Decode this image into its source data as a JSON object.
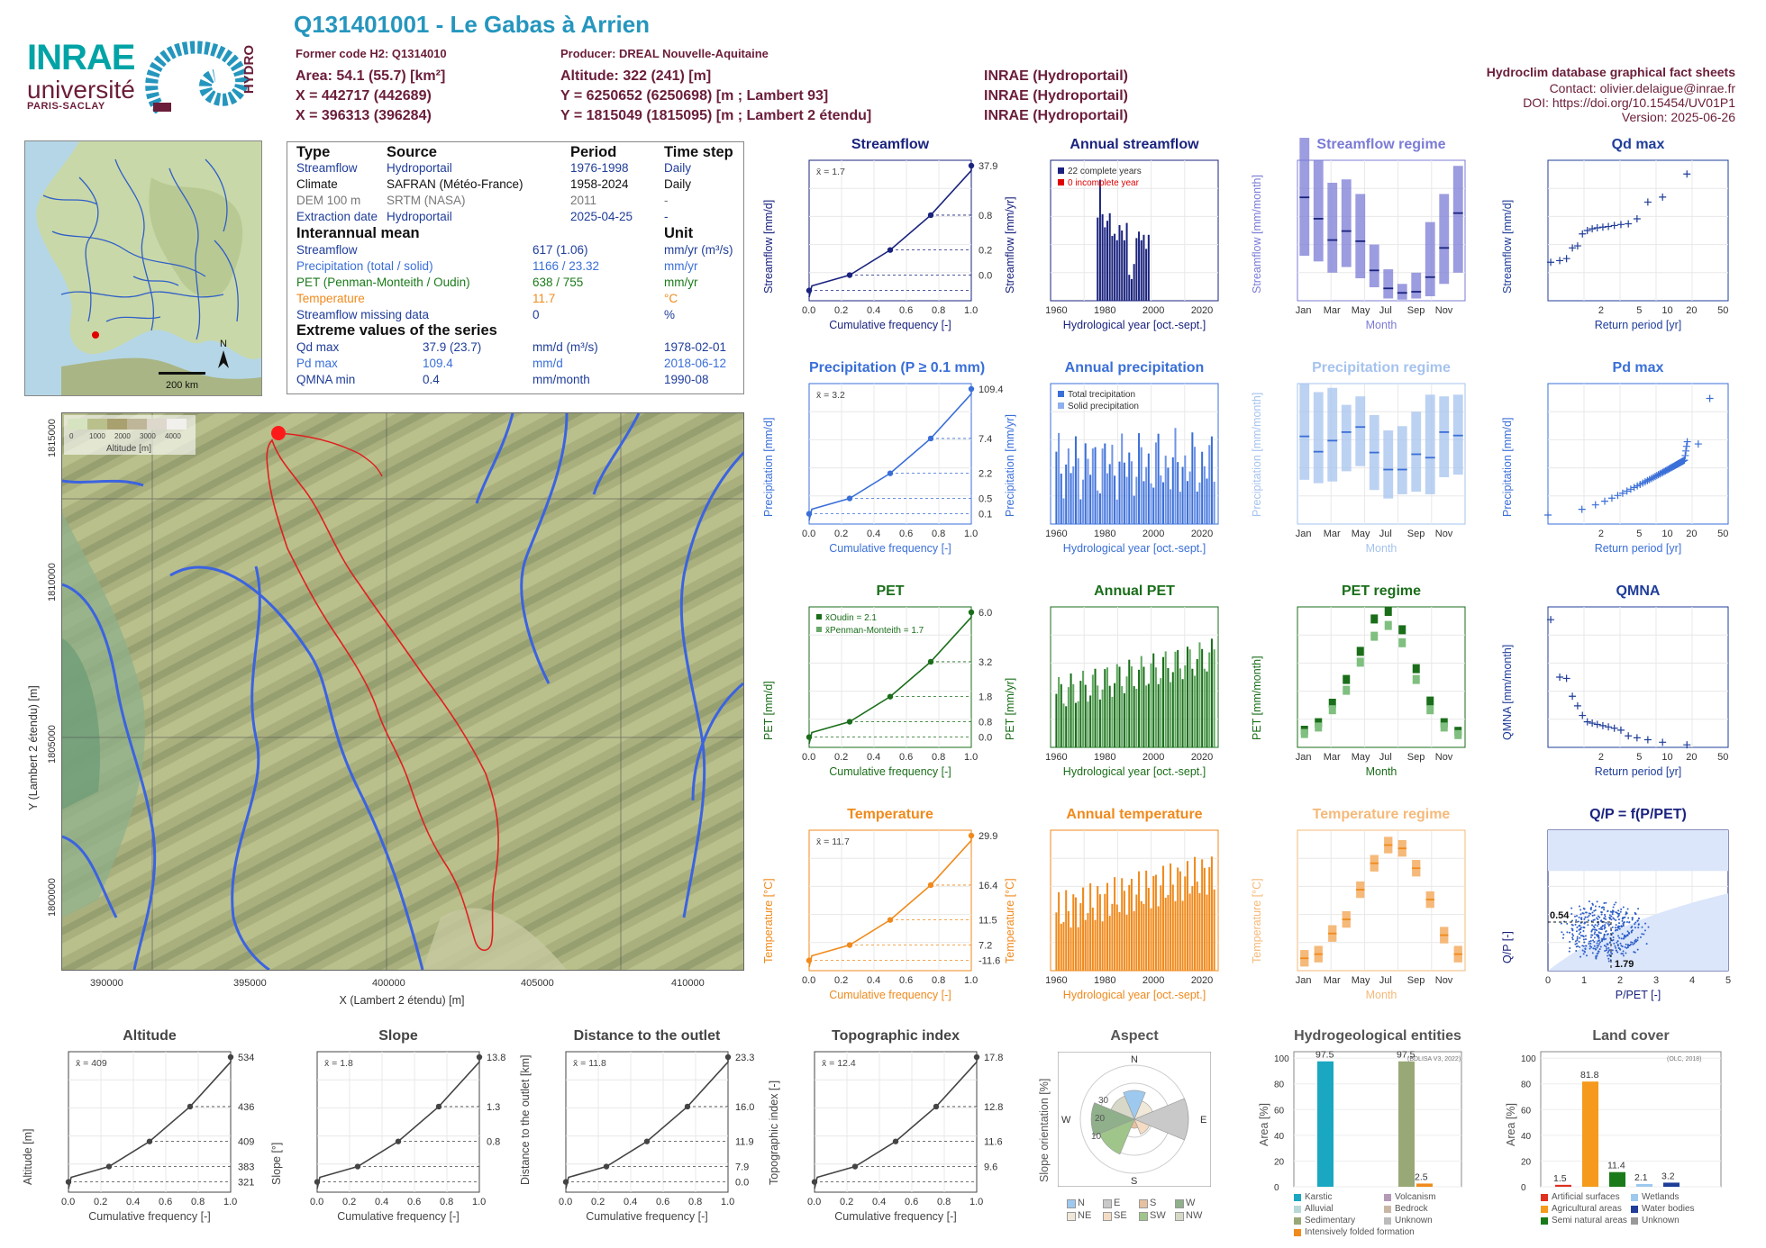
{
  "header": {
    "title": "Q131401001 - Le Gabas à Arrien",
    "former_code": "Former code H2: Q1314010",
    "producer": "Producer: DREAL Nouvelle-Aquitaine",
    "area": "Area: 54.1 (55.7) [km²]",
    "altitude": "Altitude: 322 (241) [m]",
    "x93": "X = 442717 (442689)",
    "y93": "Y = 6250652 (6250698) [m ; Lambert 93]",
    "x2": "X = 396313 (396284)",
    "y2": "Y = 1815049 (1815095) [m ; Lambert 2 étendu]",
    "src1": "INRAE (Hydroportail)",
    "src2": "INRAE (Hydroportail)",
    "src3": "INRAE (Hydroportail)",
    "db": "Hydroclim database graphical fact sheets",
    "contact": "Contact: olivier.delaigue@inrae.fr",
    "doi": "DOI: https://doi.org/10.15454/UV01P1",
    "version": "Version: 2025-06-26"
  },
  "logo": {
    "inrae": "INRAE",
    "univ": "université",
    "ps": "PARIS-SACLAY",
    "hydro": "HYDRO"
  },
  "overview_map": {
    "scale": "200 km",
    "north": "N"
  },
  "info_table": {
    "h_type": "Type",
    "h_source": "Source",
    "h_period": "Period",
    "h_step": "Time step",
    "rows": [
      {
        "type": "Streamflow",
        "source": "Hydroportail",
        "period": "1976-1998",
        "step": "Daily"
      },
      {
        "type": "Climate",
        "source": "SAFRAN (Météo-France)",
        "period": "1958-2024",
        "step": "Daily"
      },
      {
        "type": "DEM 100 m",
        "source": "SRTM (NASA)",
        "period": "2011",
        "step": "-"
      },
      {
        "type": "Extraction date",
        "source": "Hydroportail",
        "period": "2025-04-25",
        "step": "-"
      }
    ],
    "h_mean": "Interannual mean",
    "h_unit": "Unit",
    "mean_rows": [
      {
        "label": "Streamflow",
        "value": "617 (1.06)",
        "unit": "mm/yr (m³/s)"
      },
      {
        "label": "Precipitation (total / solid)",
        "value": "1166 / 23.32",
        "unit": "mm/yr"
      },
      {
        "label": "PET (Penman-Monteith / Oudin)",
        "value": "638 / 755",
        "unit": "mm/yr"
      },
      {
        "label": "Temperature",
        "value": "11.7",
        "unit": "°C"
      },
      {
        "label": "Streamflow missing data",
        "value": "0",
        "unit": "%"
      }
    ],
    "h_extreme": "Extreme values of the series",
    "extreme_rows": [
      {
        "label": "Qd max",
        "value": "37.9 (23.7)",
        "unit": "mm/d (m³/s)",
        "date": "1978-02-01"
      },
      {
        "label": "Pd max",
        "value": "109.4",
        "unit": "mm/d",
        "date": "2018-06-12"
      },
      {
        "label": "QMNA min",
        "value": "0.4",
        "unit": "mm/month",
        "date": "1990-08"
      }
    ]
  },
  "catchment_map": {
    "legend_title": "Altitude [m]",
    "legend_ticks": [
      "0",
      "1000",
      "2000",
      "3000",
      "4000"
    ],
    "xlabel": "X (Lambert 2 étendu) [m]",
    "ylabel": "Y (Lambert 2 étendu) [m]",
    "xticks": [
      "390000",
      "395000",
      "400000",
      "405000",
      "410000"
    ],
    "yticks": [
      "1815000",
      "1810000",
      "1805000",
      "1800000"
    ]
  },
  "chart_data": [
    {
      "id": "streamflow_cdf",
      "type": "line",
      "title": "Streamflow",
      "xlabel": "Cumulative frequency [-]",
      "ylabel": "Streamflow [mm/d]",
      "mean_label": "x̄ = 1.7",
      "x": [
        0,
        0.25,
        0.5,
        0.75,
        1
      ],
      "y": [
        0,
        0.2,
        0.41,
        0.8,
        37.9
      ],
      "right_ticks": [
        "37.9",
        "0.8",
        "0.2",
        "0.0"
      ],
      "color": "#1a237e"
    },
    {
      "id": "annual_streamflow",
      "type": "bar",
      "title": "Annual streamflow",
      "xlabel": "Hydrological year [oct.-sept.]",
      "ylabel": "Streamflow [mm/yr]",
      "xticks": [
        "1960",
        "1980",
        "2000",
        "2020"
      ],
      "legend": [
        "22 complete years",
        "0 incomplete year"
      ],
      "x": [
        1976,
        1977,
        1978,
        1979,
        1980,
        1981,
        1982,
        1983,
        1984,
        1985,
        1986,
        1987,
        1988,
        1989,
        1990,
        1991,
        1992,
        1993,
        1994,
        1995,
        1996,
        1997
      ],
      "values": [
        770,
        1120,
        800,
        680,
        740,
        810,
        600,
        620,
        560,
        700,
        650,
        560,
        720,
        240,
        200,
        340,
        580,
        640,
        560,
        610,
        480,
        610
      ],
      "ylim": [
        0,
        1300
      ],
      "color": "#1a237e"
    },
    {
      "id": "streamflow_regime",
      "type": "bar",
      "title": "Streamflow regime",
      "xlabel": "Month",
      "ylabel": "Streamflow [mm/month]",
      "categories": [
        "Jan",
        "Feb",
        "Mar",
        "Apr",
        "May",
        "Jun",
        "Jul",
        "Aug",
        "Sep",
        "Oct",
        "Nov",
        "Dec"
      ],
      "median": [
        92,
        73,
        54,
        62,
        53,
        27,
        11,
        7,
        8,
        21,
        47,
        78
      ],
      "q10": [
        40,
        35,
        25,
        30,
        20,
        12,
        2,
        1,
        2,
        4,
        15,
        25
      ],
      "q90": [
        145,
        125,
        105,
        108,
        95,
        50,
        28,
        15,
        25,
        70,
        95,
        120
      ],
      "ylim": [
        0,
        125
      ],
      "color": "#7b7bd6"
    },
    {
      "id": "qd_max",
      "type": "scatter",
      "title": "Qd max",
      "xlabel": "Return period [yr]",
      "ylabel": "Streamflow [mm/d]",
      "x": [
        1.04,
        1.09,
        1.15,
        1.22,
        1.3,
        1.39,
        1.5,
        1.63,
        1.79,
        2,
        2.25,
        2.57,
        3,
        3.6,
        4.5,
        6,
        9,
        18
      ],
      "y": [
        11.5,
        12.0,
        12.6,
        15.8,
        16.4,
        20.0,
        21.0,
        21.5,
        21.8,
        22.0,
        22.2,
        22.5,
        22.8,
        23.0,
        24.5,
        29.5,
        31.0,
        37.9
      ],
      "xticks": [
        "2",
        "5",
        "10",
        "20",
        "50"
      ],
      "ylim": [
        0,
        42
      ],
      "color": "#1f3d99"
    },
    {
      "id": "precip_cdf",
      "type": "line",
      "title": "Precipitation (P ≥ 0.1 mm)",
      "xlabel": "Cumulative frequency [-]",
      "ylabel": "Precipitation [mm/d]",
      "mean_label": "x̄ = 3.2",
      "x": [
        0,
        0.25,
        0.5,
        0.75,
        1
      ],
      "y": [
        0.1,
        0.5,
        2.2,
        7.4,
        109.4
      ],
      "right_ticks": [
        "109.4",
        "7.4",
        "2.2",
        "0.5",
        "0.1"
      ],
      "color": "#3a6fd8"
    },
    {
      "id": "annual_precip",
      "type": "bar",
      "title": "Annual precipitation",
      "xlabel": "Hydrological year [oct.-sept.]",
      "ylabel": "Precipitation [mm/yr]",
      "xticks": [
        "1960",
        "1980",
        "2000",
        "2020"
      ],
      "legend": [
        "Total trecipitation",
        "Solid precipitation"
      ],
      "ylim": [
        500,
        1800
      ],
      "color": "#3a6fd8"
    },
    {
      "id": "precip_regime",
      "type": "bar",
      "title": "Precipitation regime",
      "xlabel": "Month",
      "ylabel": "Precipitation [mm/month]",
      "categories": [
        "Jan",
        "Feb",
        "Mar",
        "Apr",
        "May",
        "Jun",
        "Jul",
        "Aug",
        "Sep",
        "Oct",
        "Nov",
        "Dec"
      ],
      "median": [
        103,
        85,
        98,
        108,
        114,
        84,
        64,
        64,
        82,
        78,
        108,
        104
      ],
      "q10": [
        52,
        48,
        50,
        62,
        68,
        40,
        30,
        35,
        38,
        35,
        55,
        58
      ],
      "q90": [
        165,
        155,
        160,
        140,
        150,
        128,
        110,
        115,
        132,
        152,
        150,
        152
      ],
      "ylim": [
        0,
        165
      ],
      "color": "#a6c3ee"
    },
    {
      "id": "pd_max",
      "type": "scatter",
      "title": "Pd max",
      "xlabel": "Return period [yr]",
      "ylabel": "Precipitation [mm/d]",
      "xticks": [
        "2",
        "5",
        "10",
        "20",
        "50"
      ],
      "ylim": [
        20,
        120
      ],
      "color": "#3a6fd8"
    },
    {
      "id": "pet_cdf",
      "type": "line",
      "title": "PET",
      "xlabel": "Cumulative frequency [-]",
      "ylabel": "PET [mm/d]",
      "legend": [
        "x̄Oudin = 2.1",
        "x̄Penman-Monteith = 1.7"
      ],
      "x": [
        0,
        0.25,
        0.5,
        0.75,
        1
      ],
      "y": [
        0.0,
        0.8,
        1.8,
        3.2,
        6.0
      ],
      "right_ticks": [
        "6.0",
        "3.2",
        "1.8",
        "0.8",
        "0.0"
      ],
      "color": "#1a6e1a"
    },
    {
      "id": "annual_pet",
      "type": "bar",
      "title": "Annual PET",
      "xlabel": "Hydrological year [oct.-sept.]",
      "ylabel": "PET [mm/yr]",
      "xticks": [
        "1960",
        "1980",
        "2000",
        "2020"
      ],
      "ylim": [
        480,
        900
      ],
      "color": "#1a6e1a"
    },
    {
      "id": "pet_regime",
      "type": "bar",
      "title": "PET regime",
      "xlabel": "Month",
      "ylabel": "PET [mm/month]",
      "categories": [
        "Jan",
        "Feb",
        "Mar",
        "Apr",
        "May",
        "Jun",
        "Jul",
        "Aug",
        "Sep",
        "Oct",
        "Nov",
        "Dec"
      ],
      "oudin": [
        15,
        22,
        40,
        62,
        88,
        118,
        125,
        108,
        72,
        42,
        22,
        14
      ],
      "pm": [
        12,
        18,
        34,
        52,
        78,
        102,
        112,
        96,
        62,
        34,
        18,
        11
      ],
      "ylim": [
        0,
        130
      ],
      "color": "#1a6e1a"
    },
    {
      "id": "qmna",
      "type": "scatter",
      "title": "QMNA",
      "xlabel": "Return period [yr]",
      "ylabel": "QMNA [mm/month]",
      "x": [
        1.04,
        1.09,
        1.15,
        1.22,
        1.3,
        1.39,
        1.5,
        1.63,
        1.79,
        2,
        2.25,
        2.57,
        3,
        3.6,
        4.5,
        6,
        9,
        18
      ],
      "y": [
        20,
        11,
        10.8,
        8,
        6.5,
        5,
        4,
        3.8,
        3.6,
        3.4,
        3.2,
        3,
        2.7,
        1.8,
        1.5,
        1.2,
        0.8,
        0.4
      ],
      "xticks": [
        "2",
        "5",
        "10",
        "20",
        "50"
      ],
      "ylim": [
        0,
        22
      ],
      "color": "#1f3d99"
    },
    {
      "id": "temp_cdf",
      "type": "line",
      "title": "Temperature",
      "xlabel": "Cumulative frequency [-]",
      "ylabel": "Temperature [°C]",
      "mean_label": "x̄ = 11.7",
      "x": [
        0,
        0.25,
        0.5,
        0.75,
        1
      ],
      "y": [
        -11.6,
        7.2,
        11.5,
        16.4,
        29.9
      ],
      "right_ticks": [
        "29.9",
        "16.4",
        "11.5",
        "7.2",
        "-11.6"
      ],
      "color": "#f08a1c"
    },
    {
      "id": "annual_temp",
      "type": "bar",
      "title": "Annual temperature",
      "xlabel": "Hydrological year [oct.-sept.]",
      "ylabel": "Temperature [°C]",
      "xticks": [
        "1960",
        "1980",
        "2000",
        "2020"
      ],
      "ylim": [
        9.5,
        13.6
      ],
      "color": "#f08a1c"
    },
    {
      "id": "temp_regime",
      "type": "bar",
      "title": "Temperature regime",
      "xlabel": "Month",
      "ylabel": "Temperature [°C]",
      "categories": [
        "Jan",
        "Feb",
        "Mar",
        "Apr",
        "May",
        "Jun",
        "Jul",
        "Aug",
        "Sep",
        "Oct",
        "Nov",
        "Dec"
      ],
      "median": [
        5.5,
        6.0,
        8.5,
        10.2,
        13.8,
        17.0,
        19.2,
        18.8,
        16.4,
        12.6,
        8.3,
        6.0
      ],
      "ylim": [
        4,
        21
      ],
      "color": "#f5b97a"
    },
    {
      "id": "qp_ppet",
      "type": "scatter",
      "title": "Q/P = f(P/PET)",
      "xlabel": "P/PET [-]",
      "ylabel": "Q/P [-]",
      "annotations": [
        "0.54",
        "1.79"
      ],
      "xticks": [
        "0",
        "1",
        "2",
        "3",
        "4",
        "5"
      ],
      "yticks": [
        "0",
        "0.2",
        "0.4",
        "0.6",
        "0.8",
        "1.0",
        "1.2"
      ],
      "color": "#3a6fd8"
    },
    {
      "id": "altitude_cdf",
      "type": "line",
      "title": "Altitude",
      "xlabel": "Cumulative frequency [-]",
      "ylabel": "Altitude [m]",
      "mean_label": "x̄ = 409",
      "x": [
        0,
        0.25,
        0.5,
        0.75,
        1
      ],
      "y": [
        321,
        383,
        409,
        436,
        534
      ],
      "right_ticks": [
        "534",
        "436",
        "409",
        "383",
        "321"
      ],
      "color": "#444"
    },
    {
      "id": "slope_cdf",
      "type": "line",
      "title": "Slope",
      "xlabel": "Cumulative frequency [-]",
      "ylabel": "Slope [°]",
      "mean_label": "x̄ = 1.8",
      "x": [
        0,
        0.25,
        0.5,
        0.75,
        1
      ],
      "y": [
        0,
        0.8,
        1.3,
        2.0,
        13.8
      ],
      "right_ticks": [
        "13.8",
        "1.3",
        "0.8"
      ],
      "color": "#444"
    },
    {
      "id": "distance_cdf",
      "type": "line",
      "title": "Distance to the outlet",
      "xlabel": "Cumulative frequency [-]",
      "ylabel": "Distance to the outlet [km]",
      "mean_label": "x̄ = 11.8",
      "x": [
        0,
        0.25,
        0.5,
        0.75,
        1
      ],
      "y": [
        0,
        7.9,
        11.9,
        16.0,
        23.3
      ],
      "right_ticks": [
        "23.3",
        "16.0",
        "11.9",
        "7.9",
        "0.0"
      ],
      "color": "#444"
    },
    {
      "id": "topo_cdf",
      "type": "line",
      "title": "Topographic index",
      "xlabel": "Cumulative frequency [-]",
      "ylabel": "Topographic index [-]",
      "mean_label": "x̄ = 12.4",
      "x": [
        0,
        0.25,
        0.5,
        0.75,
        1
      ],
      "y": [
        9.6,
        11.6,
        12.0,
        12.8,
        17.8
      ],
      "right_ticks": [
        "17.8",
        "12.8",
        "11.6",
        "9.6"
      ],
      "color": "#444"
    },
    {
      "id": "aspect",
      "type": "pie",
      "title": "Aspect",
      "ylabel": "Slope orientation [%]",
      "categories": [
        "N",
        "NE",
        "E",
        "SE",
        "S",
        "SW",
        "W",
        "NW"
      ],
      "values": [
        16,
        11,
        30,
        9,
        5,
        21,
        24,
        14
      ],
      "legend": [
        "N",
        "E",
        "S",
        "W",
        "NE",
        "SE",
        "SW",
        "NW"
      ],
      "rings": [
        "10",
        "20",
        "30"
      ]
    },
    {
      "id": "hydrogeology",
      "type": "bar",
      "title": "Hydrogeological entities",
      "ylabel": "Area [%]",
      "note": "(BDLISA V3, 2022)",
      "categories": [
        "Karstic",
        "Sedimentary",
        "Intensively folded formation"
      ],
      "values": [
        97.5,
        97.5,
        2.5
      ],
      "labels": [
        "97.5",
        "97.5",
        "2.5"
      ],
      "legend": [
        "Karstic",
        "Volcanism",
        "Alluvial",
        "Bedrock",
        "Sedimentary",
        "Unknown",
        "Intensively folded formation"
      ],
      "ylim": [
        0,
        100
      ]
    },
    {
      "id": "land_cover",
      "type": "bar",
      "title": "Land cover",
      "ylabel": "Area [%]",
      "note": "(OLC, 2018)",
      "categories": [
        "Artificial surfaces",
        "Agricultural areas",
        "Semi natural areas",
        "Wetlands",
        "Water bodies"
      ],
      "values": [
        1.5,
        81.8,
        11.4,
        2.1,
        3.2
      ],
      "labels": [
        "1.5",
        "81.8",
        "11.4",
        "2.1",
        "3.2"
      ],
      "legend": [
        "Artificial surfaces",
        "Wetlands",
        "Agricultural areas",
        "Water bodies",
        "Semi natural areas",
        "Unknown"
      ],
      "ylim": [
        0,
        100
      ]
    }
  ],
  "common_ticks": {
    "cdf_x": [
      "0.0",
      "0.2",
      "0.4",
      "0.6",
      "0.8",
      "1.0"
    ]
  },
  "colors": {
    "title": "#2596be",
    "header": "#6b1d3a",
    "streamflow": "#1a237e",
    "precip": "#3a6fd8",
    "pet": "#1a6e1a",
    "temp": "#f08a1c"
  }
}
